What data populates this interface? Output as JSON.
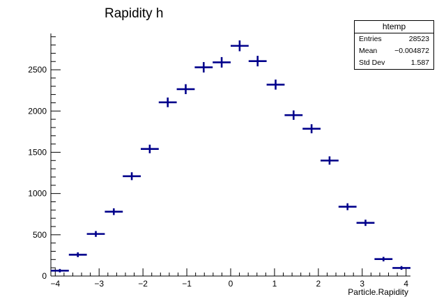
{
  "chart_data": {
    "type": "histogram",
    "title": "Rapidity h",
    "xlabel": "Particle.Rapidity",
    "ylabel": "",
    "xlim": [
      -4.1,
      4.1
    ],
    "ylim": [
      0,
      2940
    ],
    "xticks": [
      -4,
      -3,
      -2,
      -1,
      0,
      1,
      2,
      3,
      4
    ],
    "xtick_labels": [
      "−4",
      "−3",
      "−2",
      "−1",
      "0",
      "1",
      "2",
      "3",
      "4"
    ],
    "yticks": [
      0,
      500,
      1000,
      1500,
      2000,
      2500
    ],
    "ytick_labels": [
      "0",
      "500",
      "1000",
      "1500",
      "2000",
      "2500"
    ],
    "bin_width": 0.41,
    "bin_centers": [
      -3.895,
      -3.485,
      -3.075,
      -2.665,
      -2.255,
      -1.845,
      -1.435,
      -1.025,
      -0.615,
      -0.205,
      0.205,
      0.615,
      1.025,
      1.435,
      1.845,
      2.255,
      2.665,
      3.075,
      3.485,
      3.895
    ],
    "values": [
      65,
      258,
      510,
      780,
      1210,
      1540,
      2105,
      2265,
      2530,
      2590,
      2790,
      2605,
      2320,
      1950,
      1785,
      1400,
      840,
      645,
      205,
      98
    ],
    "color": "#00008b",
    "stats_box": {
      "title": "htemp",
      "rows": [
        {
          "label": "Entries",
          "value": "28523"
        },
        {
          "label": "Mean",
          "value": "−0.004872"
        },
        {
          "label": "Std Dev",
          "value": "1.587"
        }
      ]
    },
    "grid": false,
    "legend": "top-right"
  }
}
